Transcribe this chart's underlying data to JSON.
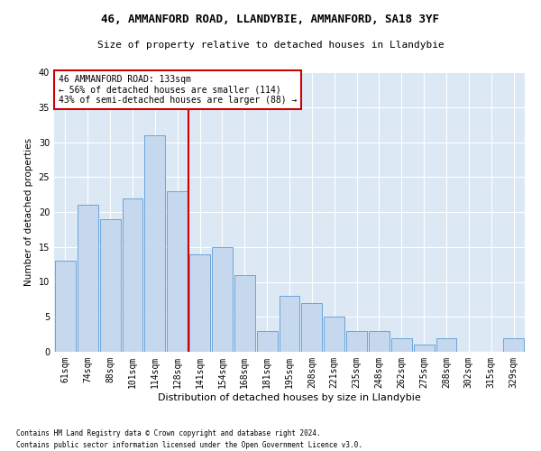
{
  "title1": "46, AMMANFORD ROAD, LLANDYBIE, AMMANFORD, SA18 3YF",
  "title2": "Size of property relative to detached houses in Llandybie",
  "xlabel": "Distribution of detached houses by size in Llandybie",
  "ylabel": "Number of detached properties",
  "categories": [
    "61sqm",
    "74sqm",
    "88sqm",
    "101sqm",
    "114sqm",
    "128sqm",
    "141sqm",
    "154sqm",
    "168sqm",
    "181sqm",
    "195sqm",
    "208sqm",
    "221sqm",
    "235sqm",
    "248sqm",
    "262sqm",
    "275sqm",
    "288sqm",
    "302sqm",
    "315sqm",
    "329sqm"
  ],
  "values": [
    13,
    21,
    19,
    22,
    31,
    23,
    14,
    15,
    11,
    3,
    8,
    7,
    5,
    3,
    3,
    2,
    1,
    2,
    0,
    0,
    2
  ],
  "bar_color": "#c5d8ee",
  "bar_edge_color": "#5b9bd5",
  "vline_x": 5.5,
  "annotation_line1": "46 AMMANFORD ROAD: 133sqm",
  "annotation_line2": "← 56% of detached houses are smaller (114)",
  "annotation_line3": "43% of semi-detached houses are larger (88) →",
  "annotation_box_color": "#ffffff",
  "annotation_box_edge": "#cc0000",
  "vline_color": "#cc0000",
  "ylim": [
    0,
    40
  ],
  "yticks": [
    0,
    5,
    10,
    15,
    20,
    25,
    30,
    35,
    40
  ],
  "footnote1": "Contains HM Land Registry data © Crown copyright and database right 2024.",
  "footnote2": "Contains public sector information licensed under the Open Government Licence v3.0.",
  "bg_color": "#dce9f5",
  "fig_bg_color": "#ffffff",
  "title1_fontsize": 9,
  "title2_fontsize": 8,
  "xlabel_fontsize": 8,
  "ylabel_fontsize": 7.5,
  "tick_fontsize": 7,
  "annot_fontsize": 7,
  "footnote_fontsize": 5.5
}
